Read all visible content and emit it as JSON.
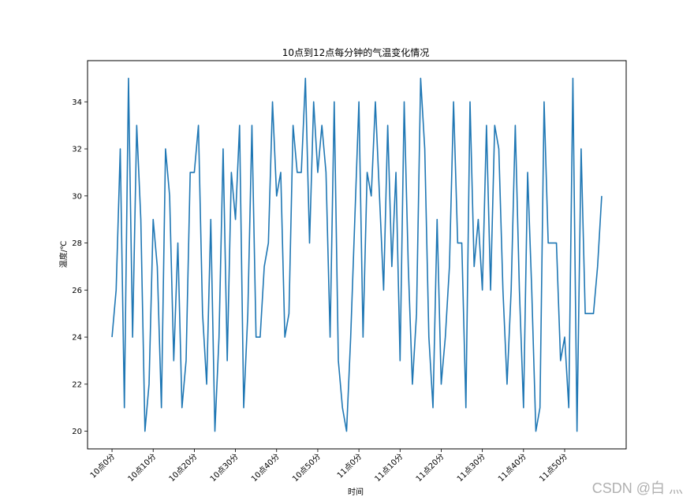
{
  "chart_data": {
    "type": "line",
    "title": "10点到12点每分钟的气温变化情况",
    "xlabel": "时间",
    "ylabel": "温度/℃",
    "ylim": [
      19.25,
      35.75
    ],
    "xlim": [
      -5.95,
      124.95
    ],
    "grid": false,
    "line_color": "#1f77b4",
    "yticks": [
      20,
      22,
      24,
      26,
      28,
      30,
      32,
      34
    ],
    "xticks": [
      {
        "x": 0,
        "label": "10点0分"
      },
      {
        "x": 10,
        "label": "10点10分"
      },
      {
        "x": 20,
        "label": "10点20分"
      },
      {
        "x": 30,
        "label": "10点30分"
      },
      {
        "x": 40,
        "label": "10点40分"
      },
      {
        "x": 50,
        "label": "10点50分"
      },
      {
        "x": 60,
        "label": "11点0分"
      },
      {
        "x": 70,
        "label": "11点10分"
      },
      {
        "x": 80,
        "label": "11点20分"
      },
      {
        "x": 90,
        "label": "11点30分"
      },
      {
        "x": 100,
        "label": "11点40分"
      },
      {
        "x": 110,
        "label": "11点50分"
      }
    ],
    "series": [
      {
        "name": "",
        "values": [
          24,
          26,
          32,
          21,
          35,
          24,
          33,
          29,
          20,
          22,
          29,
          27,
          21,
          32,
          30,
          23,
          28,
          21,
          23,
          31,
          31,
          33,
          25,
          22,
          29,
          20,
          24,
          32,
          23,
          31,
          29,
          33,
          21,
          25,
          33,
          24,
          24,
          27,
          28,
          34,
          30,
          31,
          24,
          25,
          33,
          31,
          31,
          35,
          28,
          34,
          31,
          33,
          31,
          24,
          34,
          23,
          21,
          20,
          24,
          29,
          34,
          24,
          31,
          30,
          34,
          30,
          26,
          33,
          27,
          31,
          23,
          34,
          27,
          22,
          25,
          35,
          32,
          24,
          21,
          29,
          22,
          24,
          27,
          34,
          28,
          28,
          21,
          34,
          27,
          29,
          26,
          33,
          26,
          33,
          32,
          26,
          22,
          26,
          33,
          26,
          21,
          31,
          26,
          20,
          21,
          34,
          28,
          28,
          28,
          23,
          24,
          21,
          35,
          20,
          32,
          25,
          25,
          25,
          27,
          30
        ]
      }
    ]
  },
  "watermark": "CSDN @白 灬"
}
